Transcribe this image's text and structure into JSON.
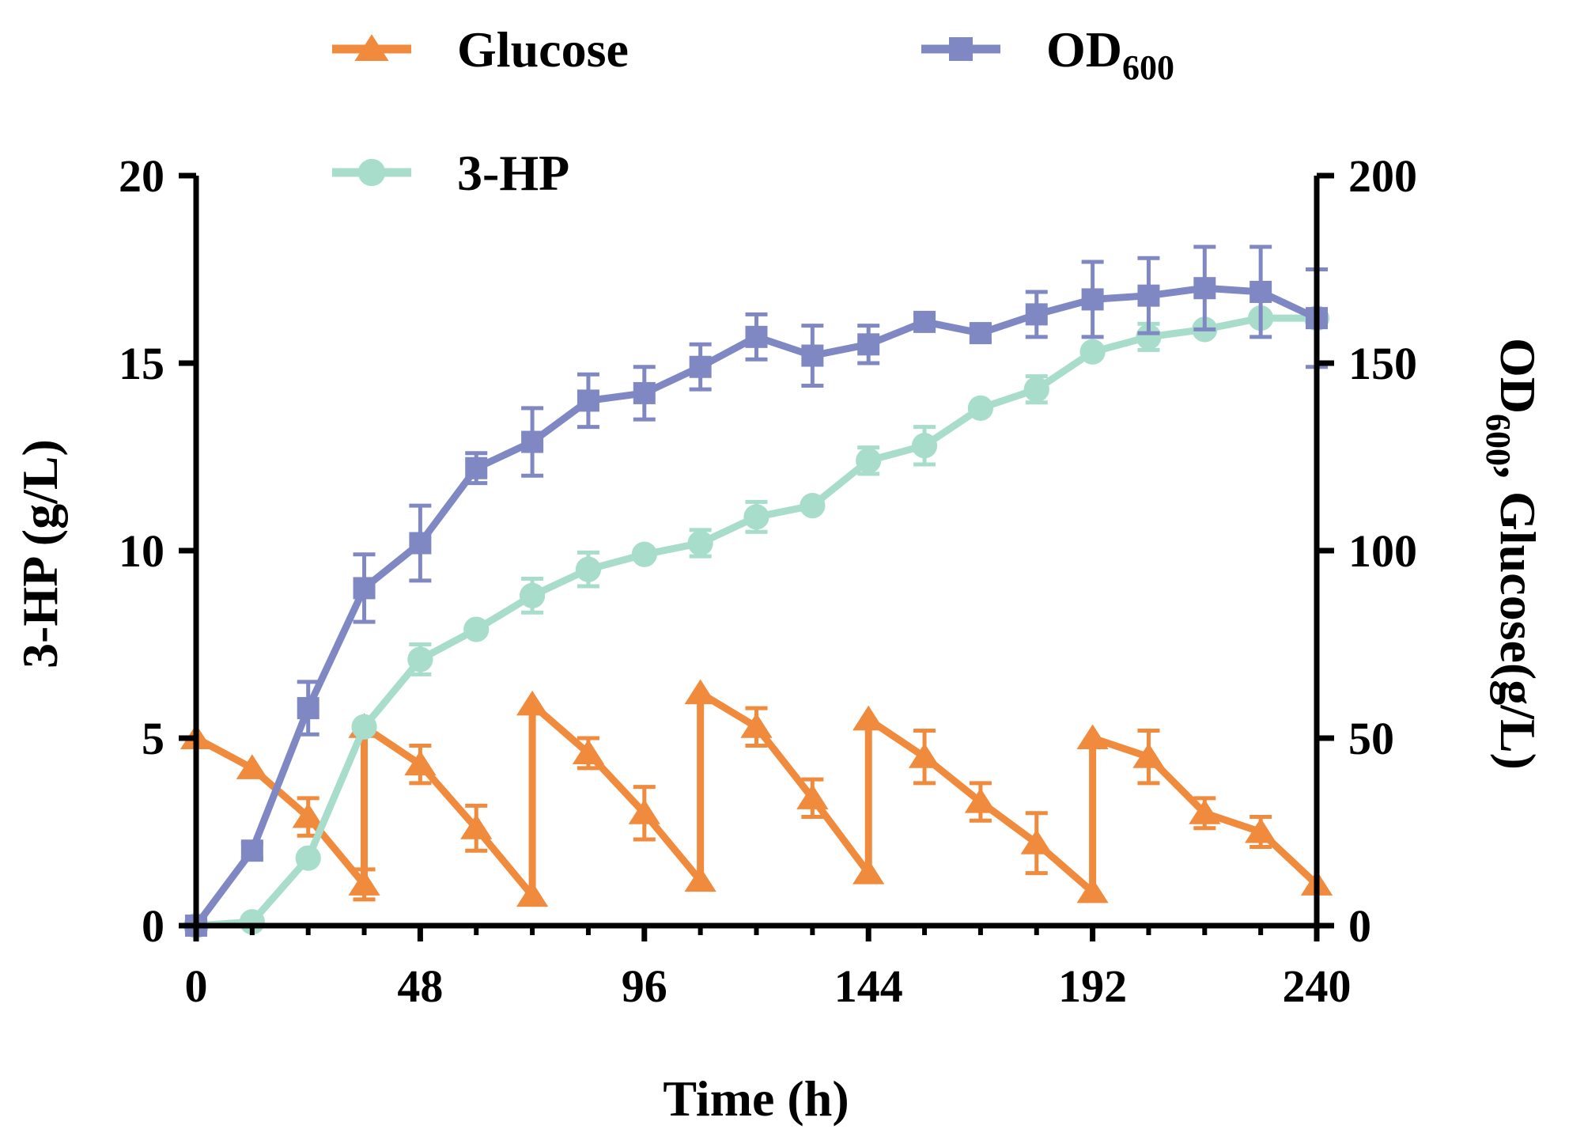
{
  "chart_data": {
    "type": "line",
    "title": "",
    "xlabel": "Time (h)",
    "ylabel_left": "3-HP (g/L)",
    "ylabel_right": {
      "main": "OD",
      "sub": "600",
      "rest": ", Glucose(g/L)"
    },
    "xlim": [
      0,
      240
    ],
    "ylim_left": [
      0,
      20
    ],
    "ylim_right": [
      0,
      200
    ],
    "x_ticks": [
      "0",
      "48",
      "96",
      "144",
      "192",
      "240"
    ],
    "y_left_ticks": [
      "0",
      "5",
      "10",
      "15",
      "20"
    ],
    "y_right_ticks": [
      "0",
      "50",
      "100",
      "150",
      "200"
    ],
    "legend": [
      {
        "key": "glucose",
        "label": "Glucose",
        "marker": "triangle",
        "color": "#f08a3c"
      },
      {
        "key": "od600",
        "label": "OD",
        "sub": "600",
        "marker": "square",
        "color": "#8088c4"
      },
      {
        "key": "hp",
        "label": "3-HP",
        "marker": "circle",
        "color": "#a8dccb"
      }
    ],
    "series": [
      {
        "name": "OD600",
        "axis": "right",
        "color": "#8088c4",
        "marker": "square",
        "points": [
          {
            "x": 0,
            "y": 0,
            "err": 0
          },
          {
            "x": 12,
            "y": 20,
            "err": 2
          },
          {
            "x": 24,
            "y": 58,
            "err": 7
          },
          {
            "x": 36,
            "y": 90,
            "err": 9
          },
          {
            "x": 48,
            "y": 102,
            "err": 10
          },
          {
            "x": 60,
            "y": 122,
            "err": 4
          },
          {
            "x": 72,
            "y": 129,
            "err": 9
          },
          {
            "x": 84,
            "y": 140,
            "err": 7
          },
          {
            "x": 96,
            "y": 142,
            "err": 7
          },
          {
            "x": 108,
            "y": 149,
            "err": 6
          },
          {
            "x": 120,
            "y": 157,
            "err": 6
          },
          {
            "x": 132,
            "y": 152,
            "err": 8
          },
          {
            "x": 144,
            "y": 155,
            "err": 5
          },
          {
            "x": 156,
            "y": 161,
            "err": 2
          },
          {
            "x": 168,
            "y": 158,
            "err": 2
          },
          {
            "x": 180,
            "y": 163,
            "err": 6
          },
          {
            "x": 192,
            "y": 167,
            "err": 10
          },
          {
            "x": 204,
            "y": 168,
            "err": 10
          },
          {
            "x": 216,
            "y": 170,
            "err": 11
          },
          {
            "x": 228,
            "y": 169,
            "err": 12
          },
          {
            "x": 240,
            "y": 162,
            "err": 13
          }
        ]
      },
      {
        "name": "3-HP",
        "axis": "left",
        "color": "#a8dccb",
        "marker": "circle",
        "points": [
          {
            "x": 0,
            "y": 0,
            "err": 0
          },
          {
            "x": 12,
            "y": 0.1,
            "err": 0
          },
          {
            "x": 24,
            "y": 1.8,
            "err": 0
          },
          {
            "x": 36,
            "y": 5.3,
            "err": 0
          },
          {
            "x": 48,
            "y": 7.1,
            "err": 0.4
          },
          {
            "x": 60,
            "y": 7.9,
            "err": 0
          },
          {
            "x": 72,
            "y": 8.8,
            "err": 0.45
          },
          {
            "x": 84,
            "y": 9.5,
            "err": 0.45
          },
          {
            "x": 96,
            "y": 9.9,
            "err": 0
          },
          {
            "x": 108,
            "y": 10.2,
            "err": 0.35
          },
          {
            "x": 120,
            "y": 10.9,
            "err": 0.4
          },
          {
            "x": 132,
            "y": 11.2,
            "err": 0
          },
          {
            "x": 144,
            "y": 12.4,
            "err": 0.35
          },
          {
            "x": 156,
            "y": 12.8,
            "err": 0.5
          },
          {
            "x": 168,
            "y": 13.8,
            "err": 0
          },
          {
            "x": 180,
            "y": 14.3,
            "err": 0.35
          },
          {
            "x": 192,
            "y": 15.3,
            "err": 0
          },
          {
            "x": 204,
            "y": 15.7,
            "err": 0.35
          },
          {
            "x": 216,
            "y": 15.9,
            "err": 0
          },
          {
            "x": 228,
            "y": 16.2,
            "err": 0
          },
          {
            "x": 240,
            "y": 16.2,
            "err": 0
          }
        ]
      },
      {
        "name": "Glucose",
        "axis": "right",
        "color": "#f08a3c",
        "marker": "triangle",
        "points": [
          {
            "x": 0,
            "y": 50,
            "err": 0
          },
          {
            "x": 12,
            "y": 42,
            "err": 0
          },
          {
            "x": 24,
            "y": 29,
            "err": 5
          },
          {
            "x": 36,
            "y": 11,
            "err": 4
          },
          {
            "x": 36,
            "y": 53,
            "err": 0
          },
          {
            "x": 48,
            "y": 43,
            "err": 5
          },
          {
            "x": 60,
            "y": 26,
            "err": 6
          },
          {
            "x": 72,
            "y": 8,
            "err": 0
          },
          {
            "x": 72,
            "y": 59,
            "err": 0
          },
          {
            "x": 84,
            "y": 46,
            "err": 4
          },
          {
            "x": 96,
            "y": 30,
            "err": 7
          },
          {
            "x": 108,
            "y": 12,
            "err": 0
          },
          {
            "x": 108,
            "y": 62,
            "err": 0
          },
          {
            "x": 120,
            "y": 53,
            "err": 5
          },
          {
            "x": 132,
            "y": 34,
            "err": 5
          },
          {
            "x": 144,
            "y": 14,
            "err": 0
          },
          {
            "x": 144,
            "y": 55,
            "err": 0
          },
          {
            "x": 156,
            "y": 45,
            "err": 7
          },
          {
            "x": 168,
            "y": 33,
            "err": 5
          },
          {
            "x": 180,
            "y": 22,
            "err": 8
          },
          {
            "x": 192,
            "y": 9,
            "err": 0
          },
          {
            "x": 192,
            "y": 50,
            "err": 0
          },
          {
            "x": 204,
            "y": 45,
            "err": 7
          },
          {
            "x": 216,
            "y": 30,
            "err": 4
          },
          {
            "x": 228,
            "y": 25,
            "err": 4
          },
          {
            "x": 240,
            "y": 11,
            "err": 0
          }
        ]
      }
    ]
  }
}
